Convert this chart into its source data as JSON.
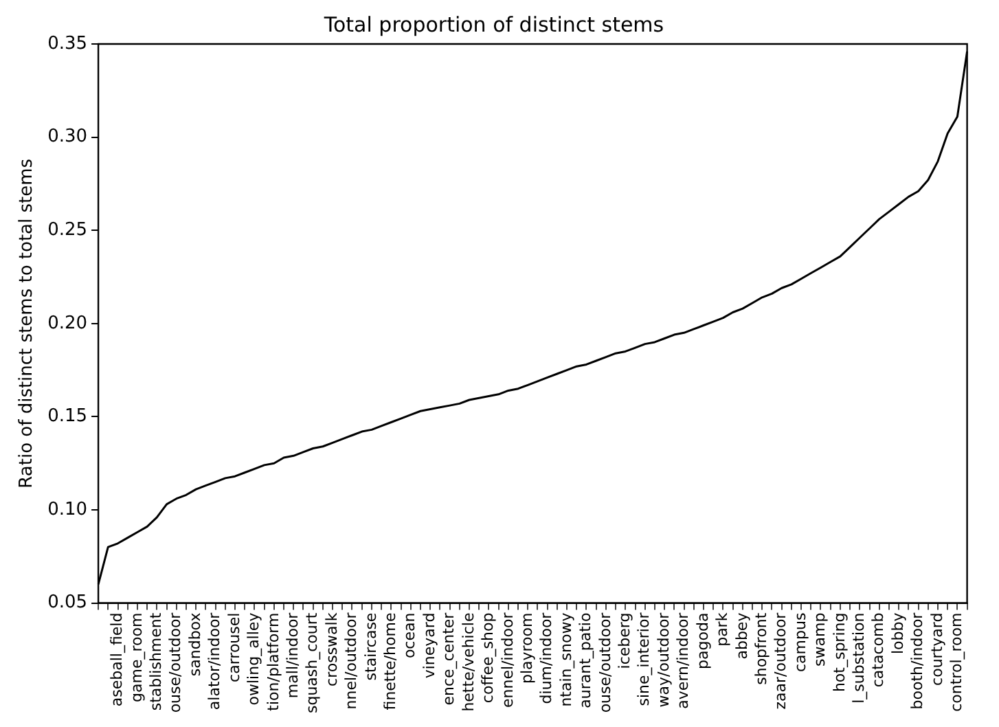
{
  "chart_data": {
    "type": "line",
    "title": "Total proportion of distinct stems",
    "ylabel": "Ratio of distinct stems to total stems",
    "categories": [
      null,
      null,
      "aseball_field",
      null,
      "game_room",
      null,
      "stablishment",
      null,
      "ouse/outdoor",
      null,
      "sandbox",
      null,
      "alator/indoor",
      null,
      "carrousel",
      null,
      "owling_alley",
      null,
      "tion/platform",
      null,
      "mall/indoor",
      null,
      "squash_court",
      null,
      "crosswalk",
      null,
      "nnel/outdoor",
      null,
      "staircase",
      null,
      "finette/home",
      null,
      "ocean",
      null,
      "vineyard",
      null,
      "ence_center",
      null,
      "hette/vehicle",
      null,
      "coffee_shop",
      null,
      "ennel/indoor",
      null,
      "playroom",
      null,
      "dium/indoor",
      null,
      "ntain_snowy",
      null,
      "aurant_patio",
      null,
      "ouse/outdoor",
      null,
      "iceberg",
      null,
      "sine_interior",
      null,
      "way/outdoor",
      null,
      "avern/indoor",
      null,
      "pagoda",
      null,
      "park",
      null,
      "abbey",
      null,
      "shopfront",
      null,
      "zaar/outdoor",
      null,
      "campus",
      null,
      "swamp",
      null,
      "hot_spring",
      null,
      "l_substation",
      null,
      "catacomb",
      null,
      "lobby",
      null,
      "booth/indoor",
      null,
      "courtyard",
      null,
      "control_room",
      null
    ],
    "series": [
      {
        "color": "#000000",
        "values": [
          0.06,
          0.08,
          0.082,
          0.085,
          0.088,
          0.091,
          0.096,
          0.103,
          0.106,
          0.108,
          0.111,
          0.113,
          0.115,
          0.117,
          0.118,
          0.12,
          0.122,
          0.124,
          0.125,
          0.128,
          0.129,
          0.131,
          0.133,
          0.134,
          0.136,
          0.138,
          0.14,
          0.142,
          0.143,
          0.145,
          0.147,
          0.149,
          0.151,
          0.153,
          0.154,
          0.155,
          0.156,
          0.157,
          0.159,
          0.16,
          0.161,
          0.162,
          0.164,
          0.165,
          0.167,
          0.169,
          0.171,
          0.173,
          0.175,
          0.177,
          0.178,
          0.18,
          0.182,
          0.184,
          0.185,
          0.187,
          0.189,
          0.19,
          0.192,
          0.194,
          0.195,
          0.197,
          0.199,
          0.201,
          0.203,
          0.206,
          0.208,
          0.211,
          0.214,
          0.216,
          0.219,
          0.221,
          0.224,
          0.227,
          0.23,
          0.233,
          0.236,
          0.241,
          0.246,
          0.251,
          0.256,
          0.26,
          0.264,
          0.268,
          0.271,
          0.277,
          0.287,
          0.302,
          0.311,
          0.346
        ]
      }
    ],
    "ylim": [
      0.05,
      0.35
    ],
    "yticks": [
      {
        "value": 0.05,
        "label": "0.05"
      },
      {
        "value": 0.1,
        "label": "0.10"
      },
      {
        "value": 0.15,
        "label": "0.15"
      },
      {
        "value": 0.2,
        "label": "0.20"
      },
      {
        "value": 0.25,
        "label": "0.25"
      },
      {
        "value": 0.3,
        "label": "0.30"
      },
      {
        "value": 0.35,
        "label": "0.35"
      }
    ],
    "grid": false,
    "legend": false,
    "marker": "none",
    "line_style": "solid"
  }
}
